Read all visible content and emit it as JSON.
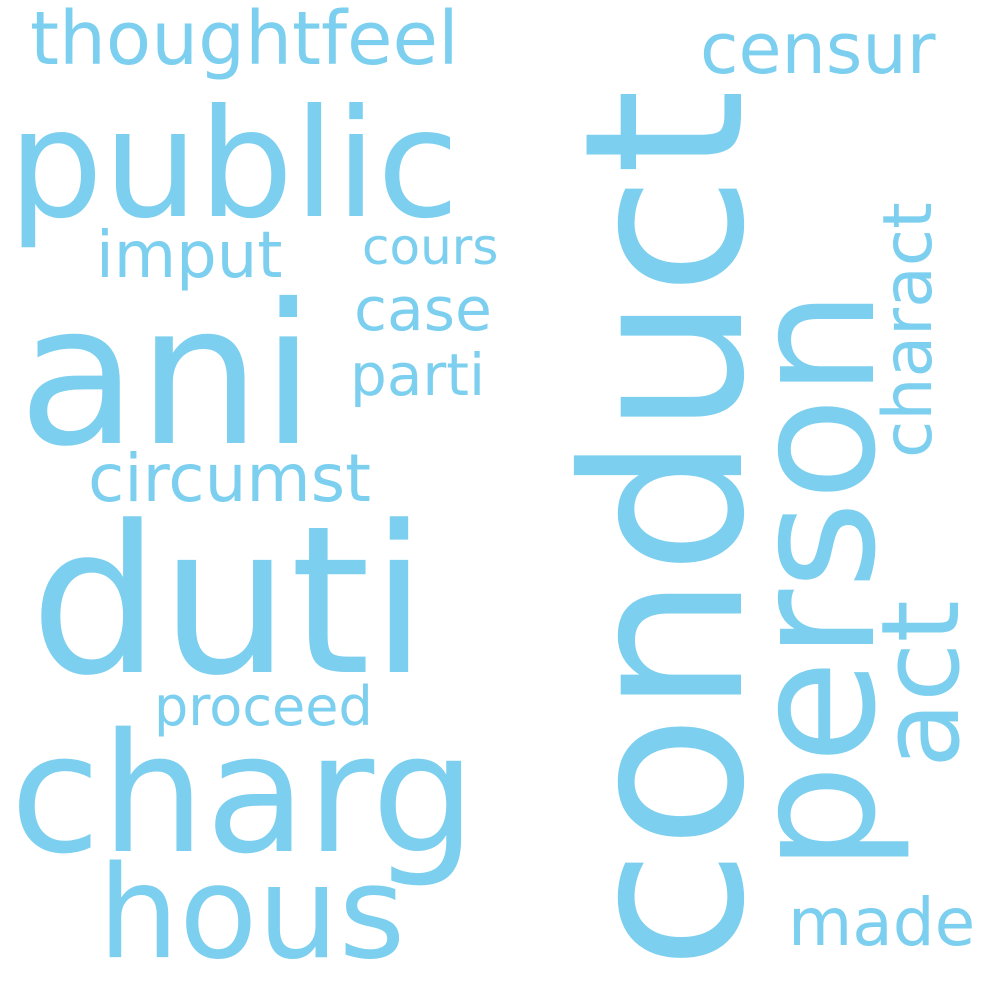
{
  "style": {
    "word_color": "#7ccfee",
    "background": "#ffffff"
  },
  "words": {
    "conduct": "conduct",
    "duti": "duti",
    "ani": "ani",
    "person": "person",
    "charg": "charg",
    "public": "public",
    "hous": "hous",
    "act": "act",
    "thoughtfeel": "thoughtfeel",
    "censur": "censur",
    "charact": "charact",
    "circumst": "circumst",
    "imput": "imput",
    "case": "case",
    "parti": "parti",
    "cours": "cours",
    "proceed": "proceed",
    "made": "made"
  }
}
